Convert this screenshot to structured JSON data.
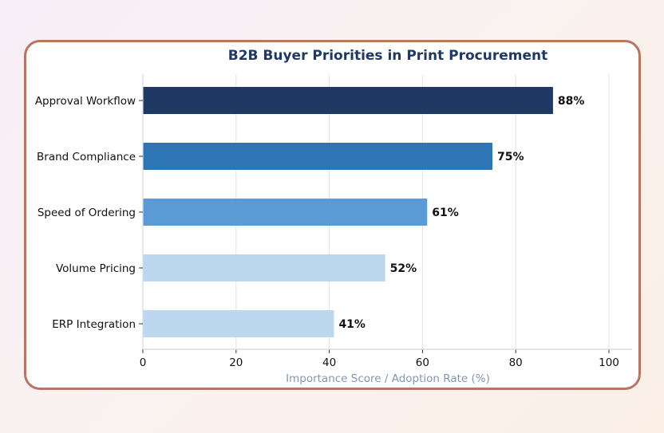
{
  "chart_data": {
    "type": "bar",
    "orientation": "horizontal",
    "title": "B2B Buyer Priorities in Print Procurement",
    "xlabel": "Importance Score / Adoption Rate (%)",
    "ylabel": "",
    "categories": [
      "Approval Workflow",
      "Brand Compliance",
      "Speed of Ordering",
      "Volume Pricing",
      "ERP Integration"
    ],
    "values": [
      88,
      75,
      61,
      52,
      41
    ],
    "data_labels": [
      "88%",
      "75%",
      "61%",
      "52%",
      "41%"
    ],
    "colors": [
      "#1f3864",
      "#2e75b6",
      "#5b9bd5",
      "#bdd7ee",
      "#bdd7ee"
    ],
    "xlim": [
      0,
      105
    ],
    "xticks": [
      0,
      20,
      40,
      60,
      80,
      100
    ],
    "xtick_labels": [
      "0",
      "20",
      "40",
      "60",
      "80",
      "100"
    ],
    "grid": "vertical",
    "title_color": "#1f3864",
    "xlabel_color": "#8497b0"
  }
}
